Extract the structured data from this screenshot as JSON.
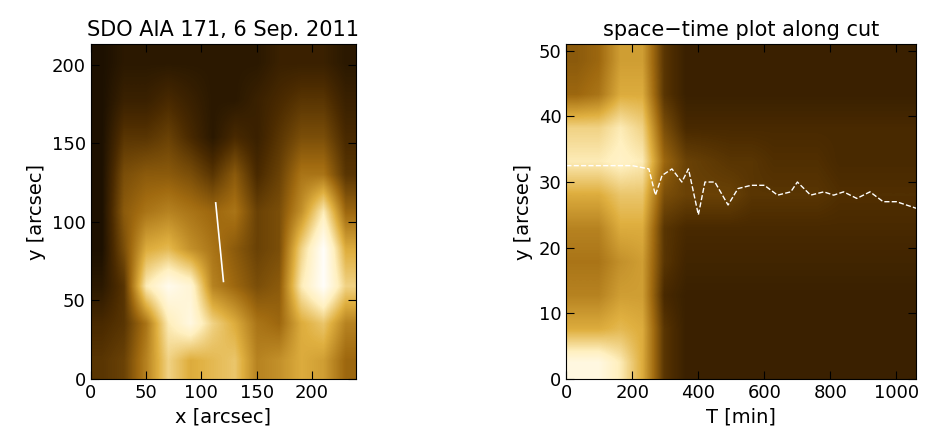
{
  "chart_data": [
    {
      "type": "image",
      "title": "SDO AIA 171, 6 Sep. 2011",
      "x_label": "x [arcsec]",
      "y_label": "y [arcsec]",
      "xlim": [
        0,
        240
      ],
      "ylim": [
        0,
        213
      ],
      "xticks": [
        0,
        50,
        100,
        150,
        200
      ],
      "yticks": [
        0,
        50,
        100,
        150,
        200
      ],
      "cell_range": [
        0,
        255
      ],
      "cells": [
        [
          60,
          70,
          120,
          180,
          150,
          160,
          170,
          120,
          130,
          150,
          140,
          100
        ],
        [
          50,
          60,
          110,
          200,
          230,
          180,
          150,
          110,
          100,
          150,
          170,
          120
        ],
        [
          30,
          60,
          200,
          240,
          220,
          120,
          100,
          80,
          90,
          200,
          250,
          180
        ],
        [
          20,
          80,
          150,
          160,
          130,
          110,
          90,
          70,
          80,
          180,
          250,
          150
        ],
        [
          20,
          90,
          110,
          120,
          110,
          100,
          110,
          70,
          80,
          130,
          200,
          100
        ],
        [
          20,
          80,
          90,
          90,
          80,
          60,
          90,
          50,
          70,
          110,
          110,
          60
        ],
        [
          20,
          60,
          60,
          70,
          50,
          30,
          50,
          40,
          60,
          80,
          80,
          50
        ],
        [
          20,
          40,
          40,
          50,
          40,
          30,
          30,
          40,
          50,
          60,
          60,
          40
        ],
        [
          20,
          30,
          30,
          30,
          30,
          30,
          30,
          30,
          40,
          40,
          40,
          30
        ]
      ],
      "cut": {
        "x": [
          120,
          113
        ],
        "y": [
          62,
          112
        ],
        "color": "#ffffff",
        "line_style": "solid"
      }
    },
    {
      "type": "image",
      "title": "space−time plot along cut",
      "x_label": "T [min]",
      "y_label": "y [arcsec]",
      "xlim": [
        0,
        1060
      ],
      "ylim": [
        0,
        51
      ],
      "xticks": [
        0,
        200,
        400,
        600,
        800,
        1000
      ],
      "yticks": [
        0,
        10,
        20,
        30,
        40,
        50
      ],
      "cell_range": [
        0,
        255
      ],
      "cells": [
        [
          230,
          230,
          200,
          150,
          60,
          40,
          40,
          40,
          40,
          40,
          40,
          40,
          40,
          40,
          40,
          40
        ],
        [
          150,
          150,
          160,
          150,
          60,
          40,
          40,
          40,
          40,
          40,
          40,
          40,
          40,
          40,
          40,
          40
        ],
        [
          120,
          120,
          140,
          140,
          50,
          40,
          40,
          40,
          40,
          40,
          40,
          40,
          40,
          40,
          40,
          40
        ],
        [
          110,
          110,
          130,
          140,
          60,
          45,
          45,
          45,
          45,
          45,
          45,
          45,
          45,
          45,
          45,
          45
        ],
        [
          120,
          120,
          150,
          150,
          60,
          50,
          50,
          50,
          50,
          50,
          50,
          50,
          50,
          50,
          50,
          50
        ],
        [
          150,
          150,
          170,
          170,
          80,
          70,
          70,
          70,
          60,
          60,
          60,
          60,
          55,
          55,
          55,
          55
        ],
        [
          200,
          200,
          210,
          200,
          100,
          70,
          65,
          60,
          60,
          55,
          55,
          55,
          50,
          50,
          50,
          50
        ],
        [
          180,
          180,
          200,
          180,
          80,
          50,
          50,
          50,
          50,
          50,
          50,
          50,
          50,
          50,
          50,
          50
        ],
        [
          100,
          110,
          150,
          150,
          60,
          40,
          40,
          40,
          40,
          40,
          40,
          40,
          40,
          40,
          40,
          40
        ],
        [
          90,
          100,
          140,
          140,
          60,
          40,
          40,
          40,
          40,
          40,
          40,
          40,
          40,
          40,
          40,
          40
        ]
      ],
      "series": [
        {
          "color": "#ffffff",
          "line_style": "dashed",
          "x": [
            0,
            200,
            250,
            270,
            290,
            320,
            350,
            370,
            400,
            420,
            450,
            490,
            520,
            560,
            600,
            640,
            680,
            700,
            740,
            780,
            810,
            840,
            880,
            920,
            960,
            1000,
            1060
          ],
          "values": [
            32.5,
            32.5,
            32,
            28,
            31,
            32,
            30,
            32,
            25,
            30,
            30,
            26.5,
            29,
            29.5,
            29.5,
            28,
            28.5,
            30,
            28,
            28.5,
            28,
            28.5,
            27.5,
            28.5,
            27,
            27,
            26
          ]
        }
      ]
    }
  ]
}
